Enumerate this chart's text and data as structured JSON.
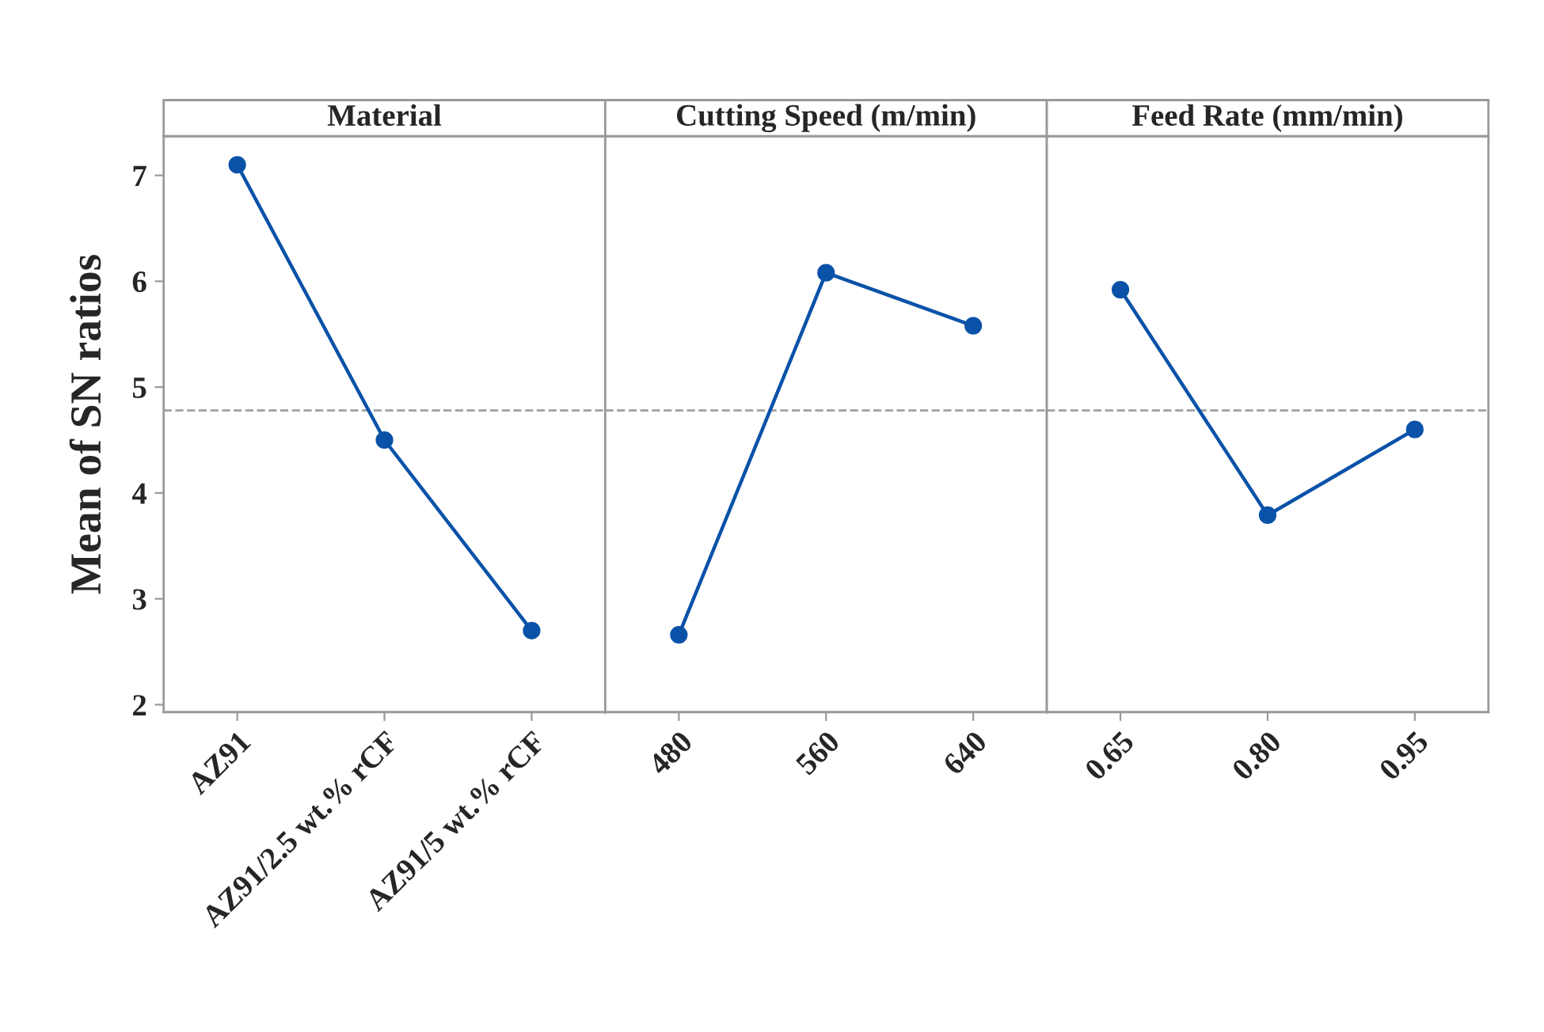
{
  "chart_data": [
    {
      "type": "line",
      "title": "Material",
      "ylabel": "Mean of SN ratios",
      "categories": [
        "AZ91",
        "AZ91/2.5 wt.% rCF",
        "AZ91/5 wt.% rCF"
      ],
      "series": [
        {
          "color": "#0a52a8",
          "values": [
            7.1,
            4.5,
            2.7
          ]
        }
      ],
      "ylim": [
        1.93,
        7.37
      ],
      "yticks": [
        2,
        3,
        4,
        5,
        6,
        7
      ],
      "marker": "circle",
      "line_style": "solid",
      "grid": false,
      "legend": false,
      "ref_lines": [
        {
          "axis": "y",
          "value": 4.78,
          "color": "#a0a0a0",
          "line_style": "dashed"
        }
      ]
    },
    {
      "type": "line",
      "title": "Cutting Speed (m/min)",
      "categories": [
        "480",
        "560",
        "640"
      ],
      "series": [
        {
          "color": "#0a52a8",
          "values": [
            2.66,
            6.08,
            5.58
          ]
        }
      ],
      "ylim": [
        1.93,
        7.37
      ],
      "tick_labels": "x",
      "marker": "circle",
      "line_style": "solid",
      "grid": false,
      "legend": false,
      "ref_lines": [
        {
          "axis": "y",
          "value": 4.78,
          "color": "#a0a0a0",
          "line_style": "dashed"
        }
      ]
    },
    {
      "type": "line",
      "title": "Feed Rate (mm/min)",
      "categories": [
        "0.65",
        "0.80",
        "0.95"
      ],
      "series": [
        {
          "color": "#0a52a8",
          "values": [
            5.92,
            3.79,
            4.6
          ]
        }
      ],
      "ylim": [
        1.93,
        7.37
      ],
      "tick_labels": "x",
      "marker": "circle",
      "line_style": "solid",
      "grid": false,
      "legend": false,
      "ref_lines": [
        {
          "axis": "y",
          "value": 4.78,
          "color": "#a0a0a0",
          "line_style": "dashed"
        }
      ]
    }
  ]
}
